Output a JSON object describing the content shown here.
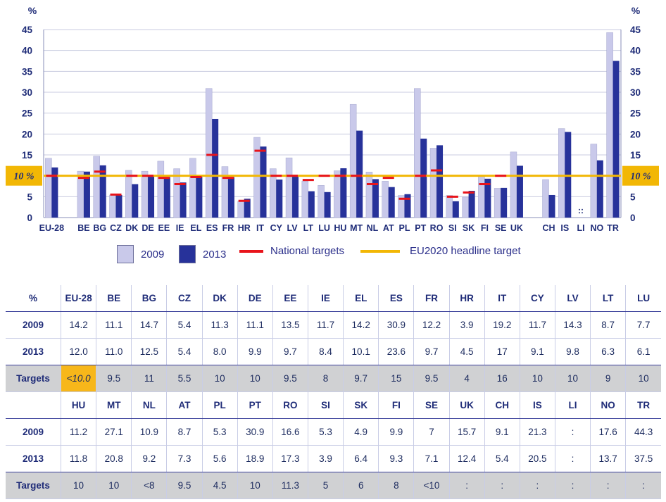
{
  "chart_data": {
    "type": "bar",
    "y_unit_label": "%",
    "ylim": [
      0,
      45
    ],
    "yticks": [
      0,
      5,
      10,
      15,
      20,
      25,
      30,
      35,
      40,
      45
    ],
    "headline_target_label": "10 %",
    "headline_target_value": 10,
    "categories": [
      "EU-28",
      "BE",
      "BG",
      "CZ",
      "DK",
      "DE",
      "EE",
      "IE",
      "EL",
      "ES",
      "FR",
      "HR",
      "IT",
      "CY",
      "LV",
      "LT",
      "LU",
      "HU",
      "MT",
      "NL",
      "AT",
      "PL",
      "PT",
      "RO",
      "SI",
      "SK",
      "FI",
      "SE",
      "UK",
      "CH",
      "IS",
      "LI",
      "NO",
      "TR"
    ],
    "gap_before": [
      "BE",
      "CH"
    ],
    "series": [
      {
        "name": "2009",
        "color": "#c9c9ea",
        "values": [
          14.2,
          11.1,
          14.7,
          5.4,
          11.3,
          11.1,
          13.5,
          11.7,
          14.2,
          30.9,
          12.2,
          3.9,
          19.2,
          11.7,
          14.3,
          8.7,
          7.7,
          11.2,
          27.1,
          10.9,
          8.7,
          5.3,
          30.9,
          16.6,
          5.3,
          4.9,
          9.9,
          7,
          15.7,
          9.1,
          21.3,
          null,
          17.6,
          44.3
        ]
      },
      {
        "name": "2013",
        "color": "#27329a",
        "values": [
          12.0,
          11.0,
          12.5,
          5.4,
          8.0,
          9.9,
          9.7,
          8.4,
          10.1,
          23.6,
          9.7,
          4.5,
          17,
          9.1,
          9.8,
          6.3,
          6.1,
          11.8,
          20.8,
          9.2,
          7.3,
          5.6,
          18.9,
          17.3,
          3.9,
          6.4,
          9.3,
          7.1,
          12.4,
          5.4,
          20.5,
          null,
          13.7,
          37.5
        ]
      },
      {
        "name": "National targets",
        "color": "#e8141b",
        "values": [
          10,
          9.5,
          11,
          5.5,
          10,
          10,
          9.5,
          8,
          9.7,
          15,
          9.5,
          4,
          16,
          10,
          10,
          9,
          10,
          10,
          10,
          8,
          9.5,
          4.5,
          10,
          11.3,
          5,
          6,
          8,
          10,
          null,
          null,
          null,
          null,
          null,
          null
        ]
      }
    ],
    "missing_marker": "::",
    "legend": [
      {
        "label": "2009",
        "kind": "box",
        "color": "#c9c9ea"
      },
      {
        "label": "2013",
        "kind": "box",
        "color": "#27329a"
      },
      {
        "label": "National targets",
        "kind": "line",
        "color": "#e8141b"
      },
      {
        "label": "EU2020 headline target",
        "kind": "line",
        "color": "#f2b705"
      }
    ]
  },
  "table": {
    "blocks": [
      {
        "header": [
          "%",
          "EU-28",
          "BE",
          "BG",
          "CZ",
          "DK",
          "DE",
          "EE",
          "IE",
          "EL",
          "ES",
          "FR",
          "HR",
          "IT",
          "CY",
          "LV",
          "LT",
          "LU"
        ],
        "rows": [
          [
            "2009",
            "14.2",
            "11.1",
            "14.7",
            "5.4",
            "11.3",
            "11.1",
            "13.5",
            "11.7",
            "14.2",
            "30.9",
            "12.2",
            "3.9",
            "19.2",
            "11.7",
            "14.3",
            "8.7",
            "7.7"
          ],
          [
            "2013",
            "12.0",
            "11.0",
            "12.5",
            "5.4",
            "8.0",
            "9.9",
            "9.7",
            "8.4",
            "10.1",
            "23.6",
            "9.7",
            "4.5",
            "17",
            "9.1",
            "9.8",
            "6.3",
            "6.1"
          ],
          [
            "Targets",
            "<10.0",
            "9.5",
            "11",
            "5.5",
            "10",
            "10",
            "9.5",
            "8",
            "9.7",
            "15",
            "9.5",
            "4",
            "16",
            "10",
            "10",
            "9",
            "10"
          ]
        ]
      },
      {
        "header": [
          "",
          "HU",
          "MT",
          "NL",
          "AT",
          "PL",
          "PT",
          "RO",
          "SI",
          "SK",
          "FI",
          "SE",
          "UK",
          "CH",
          "IS",
          "LI",
          "NO",
          "TR"
        ],
        "rows": [
          [
            "2009",
            "11.2",
            "27.1",
            "10.9",
            "8.7",
            "5.3",
            "30.9",
            "16.6",
            "5.3",
            "4.9",
            "9.9",
            "7",
            "15.7",
            "9.1",
            "21.3",
            ":",
            "17.6",
            "44.3"
          ],
          [
            "2013",
            "11.8",
            "20.8",
            "9.2",
            "7.3",
            "5.6",
            "18.9",
            "17.3",
            "3.9",
            "6.4",
            "9.3",
            "7.1",
            "12.4",
            "5.4",
            "20.5",
            ":",
            "13.7",
            "37.5"
          ],
          [
            "Targets",
            "10",
            "10",
            "<8",
            "9.5",
            "4.5",
            "10",
            "11.3",
            "5",
            "6",
            "8",
            "<10",
            ":",
            ":",
            ":",
            ":",
            ":",
            ":"
          ]
        ]
      }
    ]
  }
}
